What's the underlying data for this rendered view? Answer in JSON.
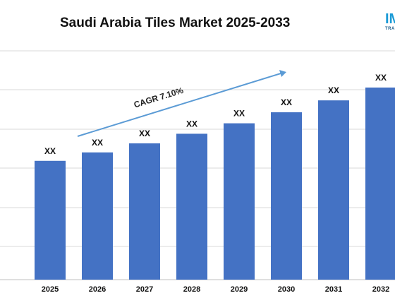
{
  "logo": {
    "mark": "IM",
    "sub": "TRA"
  },
  "chart_data": {
    "type": "bar",
    "title": "Saudi Arabia Tiles Market 2025-2033",
    "xlabel": "",
    "ylabel": "",
    "categories": [
      "2025",
      "2026",
      "2027",
      "2028",
      "2029",
      "2030",
      "2031",
      "2032"
    ],
    "values": [
      1.0,
      1.071,
      1.147,
      1.228,
      1.316,
      1.409,
      1.509,
      1.617
    ],
    "data_labels": [
      "XX",
      "XX",
      "XX",
      "XX",
      "XX",
      "XX",
      "XX",
      "XX"
    ],
    "ylim": [
      0,
      1.7
    ],
    "grid": true,
    "bar_color": "#4472c4",
    "annotation": {
      "text": "CAGR 7.10%",
      "arrow_color": "#5b9bd5"
    }
  }
}
